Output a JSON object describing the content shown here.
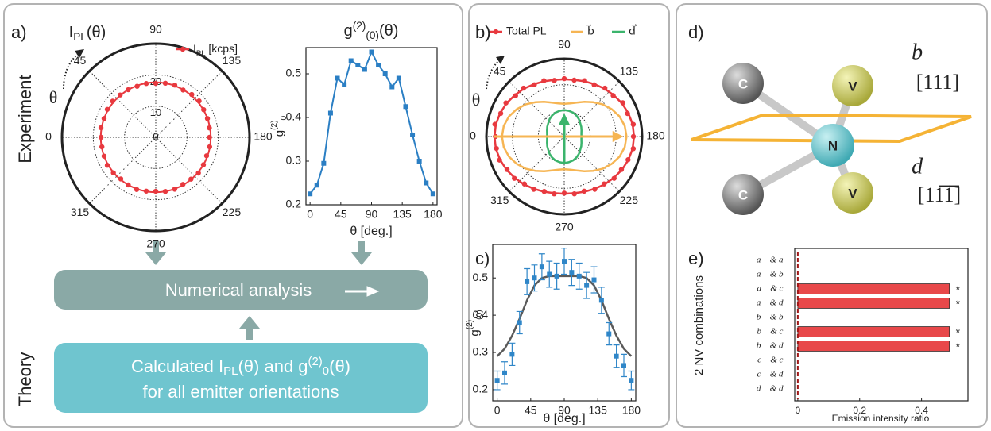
{
  "labels": {
    "panel_a": "a)",
    "panel_b": "b)",
    "panel_c": "c)",
    "panel_d": "d)",
    "panel_e": "e)",
    "experiment": "Experiment",
    "theory": "Theory",
    "numerical_analysis": "Numerical analysis",
    "theory_line1": [
      {
        "text": "Calculated I"
      },
      {
        "text": "PL",
        "shift": "sub"
      },
      {
        "text": "(θ) and g"
      },
      {
        "text": "(2)",
        "shift": "sup"
      },
      {
        "text": "0",
        "shift": "sub"
      },
      {
        "text": "(θ)"
      }
    ],
    "theory_line2": "for all emitter orientations"
  },
  "diagram": {
    "atoms": [
      "C",
      "V",
      "N",
      "C",
      "V"
    ],
    "vector_b": "b⃗",
    "direction_b": "[111]",
    "vector_d": "d⃗",
    "direction_d": "[11̅1̅]"
  },
  "chart_data": [
    {
      "type": "polar",
      "title": [
        {
          "text": "I"
        },
        {
          "text": "PL",
          "shift": "sub"
        },
        {
          "text": "(θ)"
        }
      ],
      "theta_label": "θ",
      "rlim": [
        0,
        30
      ],
      "rticks": [
        0,
        10,
        20
      ],
      "thetaticks": [
        0,
        45,
        90,
        135,
        180,
        225,
        270,
        315
      ],
      "theta": [
        0,
        10,
        20,
        30,
        40,
        50,
        60,
        70,
        80,
        90,
        100,
        110,
        120,
        130,
        140,
        150,
        160,
        170,
        180,
        190,
        200,
        210,
        220,
        230,
        240,
        250,
        260,
        270,
        280,
        290,
        300,
        310,
        320,
        330,
        340,
        350
      ],
      "series": [
        {
          "name": [
            {
              "text": "I"
            },
            {
              "text": "PL",
              "shift": "sub"
            },
            {
              "text": " [kcps]"
            }
          ],
          "color": "#e8393f",
          "marker": "dot",
          "values": [
            17.5,
            17.8,
            17.6,
            17.9,
            18.0,
            17.7,
            17.6,
            17.4,
            17.5,
            17.3,
            17.6,
            17.8,
            17.5,
            17.9,
            18.1,
            17.7,
            17.6,
            17.4,
            17.2,
            17.5,
            17.3,
            17.6,
            17.8,
            17.5,
            17.4,
            17.7,
            17.6,
            17.3,
            17.5,
            17.8,
            17.6,
            17.4,
            17.7,
            17.9,
            17.6,
            17.5
          ],
          "fit": 17.6
        }
      ]
    },
    {
      "type": "line",
      "title": [
        {
          "text": "g"
        },
        {
          "text": "(2)",
          "shift": "sup"
        },
        {
          "text": "(0)",
          "shift": "sub"
        },
        {
          "text": "(θ)"
        }
      ],
      "xlabel": "θ [deg.]",
      "ylabel": [
        {
          "text": "g"
        },
        {
          "text": "(2)",
          "shift": "sup"
        },
        {
          "text": "0",
          "shift": "sub"
        }
      ],
      "x": [
        0,
        10,
        20,
        30,
        40,
        50,
        60,
        70,
        80,
        90,
        100,
        110,
        120,
        130,
        140,
        150,
        160,
        170,
        180
      ],
      "series": [
        {
          "color": "#2b7fc4",
          "marker": "square",
          "values": [
            0.225,
            0.245,
            0.295,
            0.41,
            0.49,
            0.475,
            0.53,
            0.52,
            0.51,
            0.55,
            0.52,
            0.5,
            0.47,
            0.49,
            0.425,
            0.36,
            0.3,
            0.25,
            0.225
          ]
        }
      ],
      "xlim": [
        -6,
        186
      ],
      "ylim": [
        0.2,
        0.56
      ],
      "xticks": [
        0,
        45,
        90,
        135,
        180
      ],
      "yticks": [
        0.2,
        0.3,
        0.4,
        0.5
      ]
    },
    {
      "type": "polar",
      "theta_label": "θ",
      "rlim": [
        0,
        25
      ],
      "thetaticks": [
        0,
        45,
        90,
        135,
        180,
        225,
        270,
        315
      ],
      "theta": [
        0,
        10,
        20,
        30,
        40,
        50,
        60,
        70,
        80,
        90,
        100,
        110,
        120,
        130,
        140,
        150,
        160,
        170,
        180,
        190,
        200,
        210,
        220,
        230,
        240,
        250,
        260,
        270,
        280,
        290,
        300,
        310,
        320,
        330,
        340,
        350
      ],
      "series": [
        {
          "name": "Total PL",
          "color": "#e8393f",
          "marker": "dot",
          "values": [
            22.1,
            22.6,
            21.7,
            21.6,
            20.4,
            20.3,
            19.2,
            19.1,
            18.3,
            18.6,
            18.4,
            19.1,
            19.2,
            20.3,
            20.5,
            21.7,
            21.6,
            22.5,
            22.2,
            22.5,
            21.8,
            21.2,
            20.9,
            19.9,
            19.6,
            18.7,
            18.7,
            18.2,
            18.7,
            18.8,
            19.6,
            19.9,
            20.9,
            21.2,
            22.1,
            22.1
          ],
          "fit": [
            22.4,
            22.3,
            21.9,
            21.4,
            20.7,
            20.1,
            19.4,
            18.9,
            18.5,
            18.4,
            18.5,
            18.9,
            19.4,
            20.1,
            20.7,
            21.4,
            21.9,
            22.3,
            22.4,
            22.3,
            21.9,
            21.4,
            20.7,
            20.1,
            19.4,
            18.9,
            18.5,
            18.4,
            18.5,
            18.9,
            19.4,
            20.1,
            20.7,
            21.4,
            21.9,
            22.3
          ]
        },
        {
          "name": "b⃗",
          "color": "#f6b553",
          "values": [
            20.0,
            19.7,
            18.9,
            17.6,
            16.1,
            14.4,
            12.9,
            11.6,
            10.8,
            10.5,
            10.8,
            11.6,
            12.9,
            14.4,
            16.1,
            17.6,
            18.9,
            19.7,
            20.0,
            19.7,
            18.9,
            17.6,
            16.1,
            14.4,
            12.9,
            11.6,
            10.8,
            10.5,
            10.8,
            11.6,
            12.9,
            14.4,
            16.1,
            17.6,
            18.9,
            19.7
          ]
        },
        {
          "name": "d⃗",
          "color": "#3bb46c",
          "values": [
            5.5,
            5.6,
            5.9,
            6.3,
            6.7,
            7.3,
            7.8,
            8.2,
            8.4,
            8.5,
            8.4,
            8.2,
            7.8,
            7.3,
            6.7,
            6.3,
            5.9,
            5.6,
            5.5,
            5.6,
            5.9,
            6.3,
            6.7,
            7.3,
            7.8,
            8.2,
            8.4,
            8.5,
            8.4,
            8.2,
            7.8,
            7.3,
            6.7,
            6.3,
            5.9,
            5.6
          ]
        }
      ]
    },
    {
      "type": "scatter",
      "xlabel": "θ [deg.]",
      "ylabel": [
        {
          "text": "g"
        },
        {
          "text": "(2)",
          "shift": "sup"
        },
        {
          "text": "(0)",
          "shift": "sub"
        }
      ],
      "x": [
        0,
        10,
        20,
        30,
        40,
        50,
        60,
        70,
        80,
        90,
        100,
        110,
        120,
        130,
        140,
        150,
        160,
        170,
        180
      ],
      "series": [
        {
          "color": "#2f86c8",
          "fit_color": "#5a5a5a",
          "values": [
            0.225,
            0.245,
            0.295,
            0.38,
            0.49,
            0.5,
            0.53,
            0.51,
            0.505,
            0.545,
            0.515,
            0.505,
            0.48,
            0.495,
            0.44,
            0.35,
            0.29,
            0.265,
            0.225
          ],
          "errors": [
            0.025,
            0.03,
            0.03,
            0.03,
            0.035,
            0.035,
            0.035,
            0.035,
            0.035,
            0.035,
            0.035,
            0.035,
            0.035,
            0.035,
            0.035,
            0.03,
            0.03,
            0.03,
            0.025
          ],
          "fit": [
            0.29,
            0.31,
            0.345,
            0.39,
            0.44,
            0.48,
            0.5,
            0.505,
            0.505,
            0.505,
            0.505,
            0.505,
            0.5,
            0.48,
            0.44,
            0.39,
            0.345,
            0.31,
            0.29
          ]
        }
      ],
      "xlim": [
        -6,
        186
      ],
      "ylim": [
        0.17,
        0.59
      ],
      "xticks": [
        0,
        45,
        90,
        135,
        180
      ],
      "yticks": [
        0.2,
        0.3,
        0.4,
        0.5
      ]
    },
    {
      "type": "hbar",
      "ylabel": "2 NV combinations",
      "xlabel": "Emission intensity ratio",
      "categories": [
        "a⃗ & a⃗",
        "a⃗ & b⃗",
        "a⃗ & c⃗",
        "a⃗ & d⃗",
        "b⃗ & b⃗",
        "b⃗ & c⃗",
        "b⃗ & d⃗",
        "c⃗ & c⃗",
        "c⃗ & d⃗",
        "d⃗ & d⃗"
      ],
      "values": [
        0,
        0,
        0.49,
        0.49,
        0,
        0.49,
        0.49,
        0,
        0,
        0
      ],
      "annotations": [
        null,
        null,
        "*",
        "*",
        null,
        "*",
        "*",
        null,
        null,
        null
      ],
      "color": "#e8484a",
      "xlim": [
        -0.01,
        0.55
      ],
      "xticks": [
        0,
        0.2,
        0.4
      ]
    }
  ]
}
